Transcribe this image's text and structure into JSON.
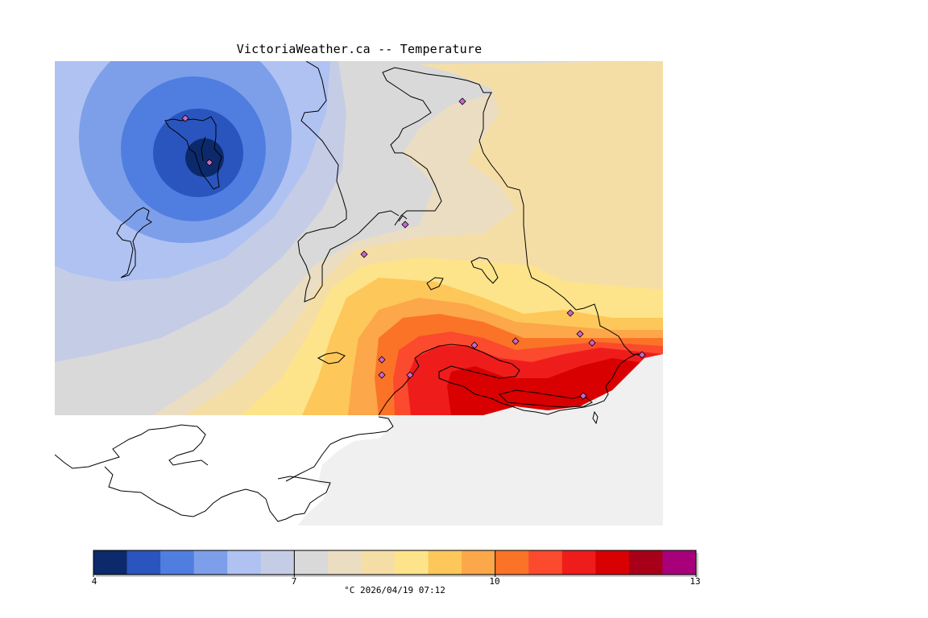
{
  "header": {
    "title": "VictoriaWeather.ca -- Temperature"
  },
  "colorbar": {
    "min": 4,
    "max": 13,
    "tick_labels": [
      "4",
      "7",
      "10",
      "13"
    ],
    "unit_caption": "°C  2026/04/19 07:12",
    "colors": [
      "#0c2a6b",
      "#2a55bf",
      "#4f7ee0",
      "#7d9fe9",
      "#afc2f2",
      "#c5cce6",
      "#d9d9d9",
      "#ebddc2",
      "#f5dea6",
      "#fde48a",
      "#fdc75a",
      "#fca74a",
      "#fb7327",
      "#fb4a2d",
      "#ef1c1c",
      "#d80000",
      "#a80018",
      "#a8007a"
    ]
  },
  "map": {
    "land_color": "#f0f0f0",
    "outline_color": "#000000",
    "marker_color": "#cc66cc"
  }
}
